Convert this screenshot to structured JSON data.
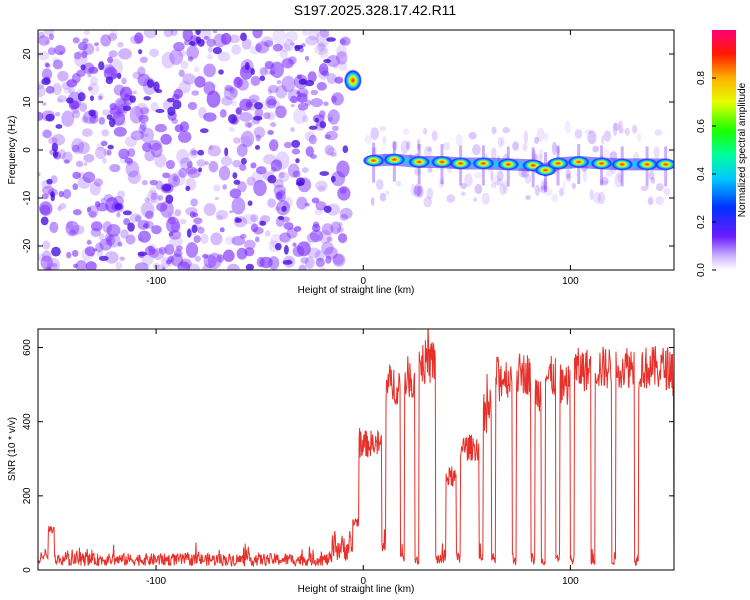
{
  "title": "S197.2025.328.17.42.R11",
  "colors": {
    "snr_line": "#e8302a",
    "signal": "#ff2a00",
    "noise": "#7b2cff"
  },
  "chart_data": [
    {
      "type": "heatmap",
      "name": "spectrogram",
      "xlabel": "Height of straight line (km)",
      "ylabel": "Frequency (Hz)",
      "xlim": [
        -157,
        150
      ],
      "ylim": [
        -25,
        25
      ],
      "xticks": [
        -100,
        0,
        100
      ],
      "xtick_labels": [
        "-100",
        "0",
        "100"
      ],
      "yticks": [
        20,
        10,
        0,
        -10,
        -20
      ],
      "ytick_labels": [
        "20",
        "10",
        "0",
        "-10",
        "-20"
      ],
      "colorbar": {
        "label": "Normalized spectral amplitude",
        "range": [
          0,
          1
        ],
        "ticks": [
          0.0,
          0.2,
          0.4,
          0.6,
          0.8
        ],
        "tick_labels": [
          "0.0",
          "0.2",
          "0.4",
          "0.6",
          "0.8"
        ]
      },
      "signal_track": [
        {
          "x": 5,
          "y": -2.2
        },
        {
          "x": 15,
          "y": -2.0
        },
        {
          "x": 27,
          "y": -2.5
        },
        {
          "x": 38,
          "y": -2.5
        },
        {
          "x": 47,
          "y": -2.8
        },
        {
          "x": 58,
          "y": -2.8
        },
        {
          "x": 70,
          "y": -3.0
        },
        {
          "x": 82,
          "y": -3.2
        },
        {
          "x": 88,
          "y": -4.2
        },
        {
          "x": 94,
          "y": -2.8
        },
        {
          "x": 104,
          "y": -2.5
        },
        {
          "x": 115,
          "y": -2.8
        },
        {
          "x": 125,
          "y": -3.0
        },
        {
          "x": 137,
          "y": -3.0
        },
        {
          "x": 146,
          "y": -3.0
        }
      ],
      "isolated_peak": {
        "x": -5,
        "y": 14.5
      }
    },
    {
      "type": "line",
      "name": "snr",
      "xlabel": "Height of straight line (km)",
      "ylabel": "SNR (10 * v/v)",
      "xlim": [
        -157,
        150
      ],
      "ylim": [
        0,
        650
      ],
      "xticks": [
        -100,
        0,
        100
      ],
      "xtick_labels": [
        "-100",
        "0",
        "100"
      ],
      "yticks": [
        0,
        200,
        400,
        600
      ],
      "ytick_labels": [
        "0",
        "200",
        "400",
        "600"
      ],
      "segments": [
        {
          "x0": -157,
          "x1": -152,
          "level": 30
        },
        {
          "x0": -152,
          "x1": -149,
          "level": 110
        },
        {
          "x0": -149,
          "x1": -15,
          "level": 28
        },
        {
          "x0": -15,
          "x1": -5,
          "level": 60
        },
        {
          "x0": -5,
          "x1": -2,
          "level": 130
        },
        {
          "x0": -2,
          "x1": 9,
          "level": 340
        },
        {
          "x0": 9,
          "x1": 11,
          "level": 60
        },
        {
          "x0": 11,
          "x1": 18,
          "level": 500
        },
        {
          "x0": 18,
          "x1": 20,
          "level": 30
        },
        {
          "x0": 20,
          "x1": 25,
          "level": 520
        },
        {
          "x0": 25,
          "x1": 27,
          "level": 30
        },
        {
          "x0": 27,
          "x1": 35,
          "level": 560
        },
        {
          "x0": 35,
          "x1": 40,
          "level": 30
        },
        {
          "x0": 40,
          "x1": 45,
          "level": 250
        },
        {
          "x0": 45,
          "x1": 47,
          "level": 30
        },
        {
          "x0": 47,
          "x1": 56,
          "level": 330
        },
        {
          "x0": 56,
          "x1": 58,
          "level": 30
        },
        {
          "x0": 58,
          "x1": 62,
          "level": 430
        },
        {
          "x0": 62,
          "x1": 64,
          "level": 30
        },
        {
          "x0": 64,
          "x1": 72,
          "level": 520
        },
        {
          "x0": 72,
          "x1": 74,
          "level": 30
        },
        {
          "x0": 74,
          "x1": 81,
          "level": 530
        },
        {
          "x0": 81,
          "x1": 83,
          "level": 30
        },
        {
          "x0": 83,
          "x1": 86,
          "level": 480
        },
        {
          "x0": 86,
          "x1": 88,
          "level": 30
        },
        {
          "x0": 88,
          "x1": 93,
          "level": 520
        },
        {
          "x0": 93,
          "x1": 95,
          "level": 30
        },
        {
          "x0": 95,
          "x1": 100,
          "level": 500
        },
        {
          "x0": 100,
          "x1": 102,
          "level": 30
        },
        {
          "x0": 102,
          "x1": 110,
          "level": 540
        },
        {
          "x0": 110,
          "x1": 112,
          "level": 30
        },
        {
          "x0": 112,
          "x1": 120,
          "level": 545
        },
        {
          "x0": 120,
          "x1": 122,
          "level": 30
        },
        {
          "x0": 122,
          "x1": 131,
          "level": 550
        },
        {
          "x0": 131,
          "x1": 133,
          "level": 30
        },
        {
          "x0": 133,
          "x1": 150,
          "level": 545
        }
      ]
    }
  ]
}
